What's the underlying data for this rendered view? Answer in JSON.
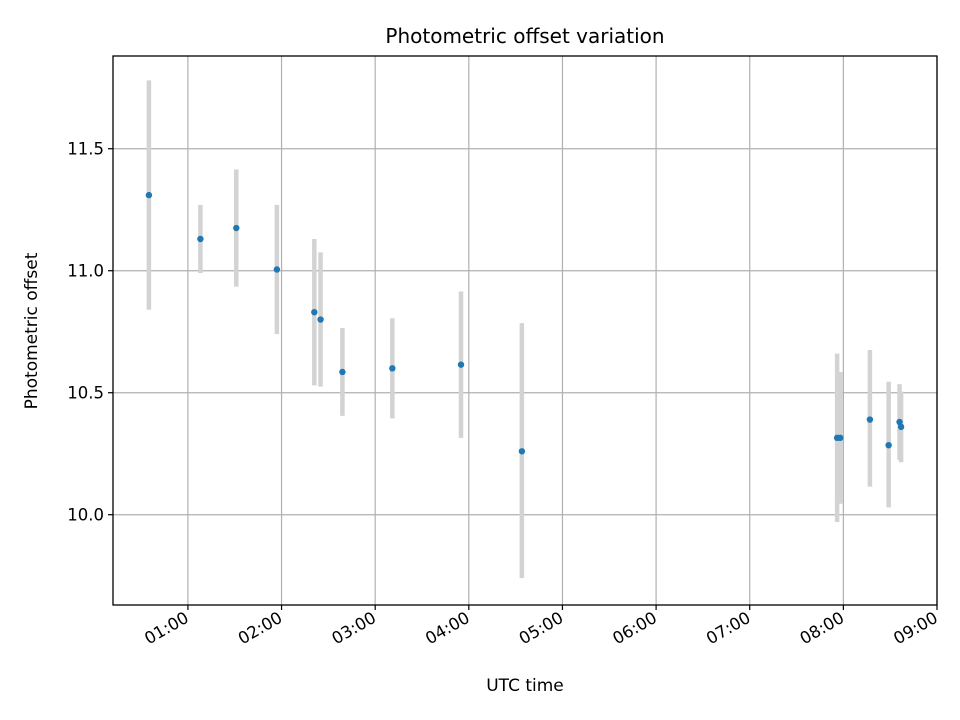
{
  "chart_data": {
    "type": "scatter",
    "title": "Photometric offset variation",
    "xlabel": "UTC time",
    "ylabel": "Photometric offset",
    "xlim": [
      "00:12",
      "09:00"
    ],
    "ylim": [
      9.63,
      11.88
    ],
    "x_ticks": [
      "01:00",
      "02:00",
      "03:00",
      "04:00",
      "05:00",
      "06:00",
      "07:00",
      "08:00",
      "09:00"
    ],
    "y_ticks": [
      10.0,
      10.5,
      11.0,
      11.5
    ],
    "y_tick_labels": [
      "10.0",
      "10.5",
      "11.0",
      "11.5"
    ],
    "grid": true,
    "colors": {
      "point": "#1f77b4",
      "errorbar": "#d3d3d3",
      "grid": "#b0b0b0"
    },
    "series": [
      {
        "points": [
          {
            "x": "00:35",
            "y": 11.31,
            "err_low": 10.84,
            "err_high": 11.78
          },
          {
            "x": "01:08",
            "y": 11.13,
            "err_low": 10.99,
            "err_high": 11.27
          },
          {
            "x": "01:31",
            "y": 11.175,
            "err_low": 10.935,
            "err_high": 11.415
          },
          {
            "x": "01:57",
            "y": 11.005,
            "err_low": 10.74,
            "err_high": 11.27
          },
          {
            "x": "02:21",
            "y": 10.83,
            "err_low": 10.53,
            "err_high": 11.13
          },
          {
            "x": "02:25",
            "y": 10.8,
            "err_low": 10.525,
            "err_high": 11.075
          },
          {
            "x": "02:39",
            "y": 10.585,
            "err_low": 10.405,
            "err_high": 10.765
          },
          {
            "x": "03:11",
            "y": 10.6,
            "err_low": 10.395,
            "err_high": 10.805
          },
          {
            "x": "03:55",
            "y": 10.615,
            "err_low": 10.315,
            "err_high": 10.915
          },
          {
            "x": "04:34",
            "y": 10.26,
            "err_low": 9.74,
            "err_high": 10.785
          },
          {
            "x": "07:56",
            "y": 10.315,
            "err_low": 9.97,
            "err_high": 10.66
          },
          {
            "x": "07:58",
            "y": 10.315,
            "err_low": 10.045,
            "err_high": 10.585
          },
          {
            "x": "08:17",
            "y": 10.39,
            "err_low": 10.115,
            "err_high": 10.675
          },
          {
            "x": "08:29",
            "y": 10.285,
            "err_low": 10.03,
            "err_high": 10.545
          },
          {
            "x": "08:36",
            "y": 10.38,
            "err_low": 10.225,
            "err_high": 10.535
          },
          {
            "x": "08:37",
            "y": 10.36,
            "err_low": 10.215,
            "err_high": 10.505
          }
        ]
      }
    ]
  }
}
